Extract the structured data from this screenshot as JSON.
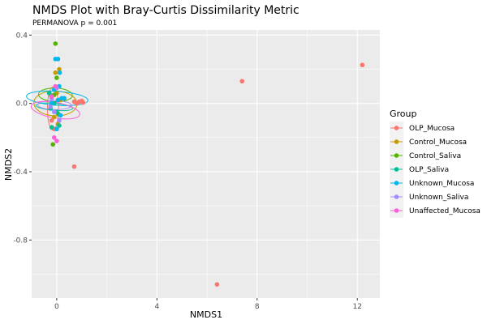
{
  "chart_data": {
    "type": "scatter",
    "title": "NMDS Plot with Bray-Curtis Dissimilarity Metric",
    "subtitle": "PERMANOVA p = 0.001",
    "xlabel": "NMDS1",
    "ylabel": "NMDS2",
    "xlim": [
      -1.0,
      12.9
    ],
    "ylim": [
      -1.14,
      0.43
    ],
    "xticks": [
      0,
      4,
      8,
      12
    ],
    "xtick_labels": [
      "0",
      "4",
      "8",
      "12"
    ],
    "yticks": [
      -0.8,
      -0.4,
      0.0,
      0.4
    ],
    "ytick_labels": [
      "-0.8",
      "-0.4",
      "0.0",
      "0.4"
    ],
    "grid": true,
    "legend_title": "Group",
    "legend_position": "right",
    "series": [
      {
        "name": "OLP_Mucosa",
        "color": "#F8766D",
        "points": [
          [
            12.2,
            0.225
          ],
          [
            7.4,
            0.13
          ],
          [
            6.4,
            -1.06
          ],
          [
            0.7,
            -0.37
          ],
          [
            0.7,
            0.01
          ],
          [
            0.8,
            0.0
          ],
          [
            0.9,
            0.01
          ],
          [
            1.0,
            0.015
          ],
          [
            1.05,
            0.005
          ],
          [
            -0.2,
            -0.1
          ],
          [
            -0.1,
            -0.15
          ],
          [
            0.1,
            0.02
          ],
          [
            -0.25,
            0.05
          ]
        ],
        "ellipse": {
          "cx": -0.15,
          "cy": -0.03,
          "rx": 0.22,
          "ry": 0.14,
          "angle": 0
        }
      },
      {
        "name": "Control_Mucosa",
        "color": "#C49A00",
        "points": [
          [
            0.1,
            0.2
          ],
          [
            -0.05,
            0.18
          ],
          [
            0.15,
            0.02
          ],
          [
            -0.1,
            -0.08
          ],
          [
            0.0,
            0.06
          ],
          [
            0.05,
            -0.12
          ]
        ],
        "ellipse": {
          "cx": -0.05,
          "cy": 0.0,
          "rx": 0.5,
          "ry": 0.14,
          "angle": -88
        }
      },
      {
        "name": "Control_Saliva",
        "color": "#53B400",
        "points": [
          [
            -0.05,
            0.35
          ],
          [
            -0.15,
            -0.24
          ],
          [
            0.0,
            0.15
          ],
          [
            -0.1,
            0.05
          ],
          [
            -0.2,
            -0.14
          ],
          [
            0.05,
            -0.06
          ]
        ],
        "ellipse": {
          "cx": -0.05,
          "cy": 0.05,
          "rx": 0.27,
          "ry": 0.11,
          "angle": -88
        }
      },
      {
        "name": "OLP_Saliva",
        "color": "#00C094",
        "points": [
          [
            -0.25,
            -0.03
          ],
          [
            -0.2,
            -0.14
          ],
          [
            -0.1,
            0.0
          ],
          [
            0.0,
            -0.05
          ],
          [
            0.1,
            -0.13
          ],
          [
            -0.3,
            0.06
          ]
        ],
        "ellipse": {
          "cx": -0.1,
          "cy": -0.02,
          "rx": 0.14,
          "ry": 0.12,
          "angle": -85
        }
      },
      {
        "name": "Unknown_Mucosa",
        "color": "#00B6EB",
        "points": [
          [
            -0.05,
            0.26
          ],
          [
            0.05,
            0.26
          ],
          [
            0.1,
            0.1
          ],
          [
            -0.1,
            0.08
          ],
          [
            0.15,
            -0.07
          ],
          [
            0.0,
            -0.15
          ],
          [
            0.2,
            0.03
          ],
          [
            0.3,
            0.03
          ],
          [
            0.05,
            0.02
          ],
          [
            -0.2,
            0.0
          ],
          [
            0.12,
            0.18
          ]
        ],
        "ellipse": {
          "cx": 0.02,
          "cy": 0.03,
          "rx": 0.28,
          "ry": 0.2,
          "angle": -86
        }
      },
      {
        "name": "Unknown_Saliva",
        "color": "#A58AFF",
        "points": [
          [
            -0.2,
            0.03
          ],
          [
            -0.1,
            -0.05
          ],
          [
            0.0,
            0.09
          ],
          [
            0.1,
            -0.1
          ],
          [
            -0.25,
            -0.02
          ]
        ],
        "ellipse": {
          "cx": -0.08,
          "cy": -0.01,
          "rx": 0.18,
          "ry": 0.11,
          "angle": -89
        }
      },
      {
        "name": "Unaffected_Mucosa",
        "color": "#FB61D7",
        "points": [
          [
            -0.1,
            -0.2
          ],
          [
            0.0,
            -0.22
          ],
          [
            -0.05,
            0.1
          ],
          [
            -0.2,
            0.04
          ]
        ],
        "ellipse": {
          "cx": -0.05,
          "cy": -0.04,
          "rx": 0.31,
          "ry": 0.16,
          "angle": -80
        }
      }
    ]
  }
}
